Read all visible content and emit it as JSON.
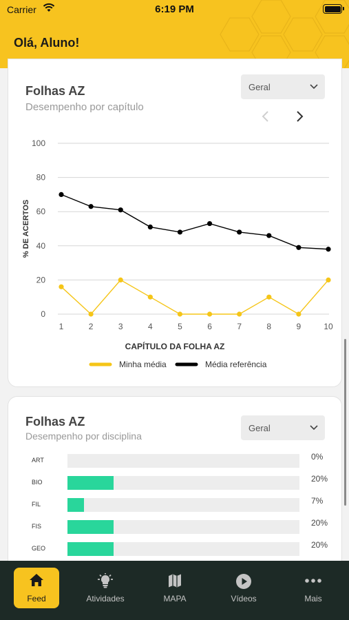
{
  "status_bar": {
    "carrier": "Carrier",
    "time": "6:19 PM"
  },
  "header": {
    "greeting": "Olá, Aluno!",
    "color": "#f7c31f"
  },
  "card_chapter": {
    "title": "Folhas AZ",
    "subtitle": "Desempenho por capítulo",
    "filter": "Geral",
    "prev_icon": "chevron-left-icon",
    "next_icon": "chevron-right-icon"
  },
  "chart_data": {
    "type": "line",
    "x": [
      1,
      2,
      3,
      4,
      5,
      6,
      7,
      8,
      9,
      10
    ],
    "xlabel": "CAPÍTULO DA FOLHA AZ",
    "ylabel": "% DE ACERTOS",
    "ylim": [
      0,
      100
    ],
    "yticks": [
      0,
      20,
      40,
      60,
      80,
      100
    ],
    "grid": true,
    "legend_position": "bottom",
    "series": [
      {
        "name": "Minha média",
        "color": "#f5c518",
        "values": [
          16,
          0,
          20,
          10,
          0,
          0,
          0,
          10,
          0,
          20
        ]
      },
      {
        "name": "Média referência",
        "color": "#000000",
        "values": [
          70,
          63,
          61,
          51,
          48,
          53,
          48,
          46,
          39,
          38
        ]
      }
    ]
  },
  "card_subject": {
    "title": "Folhas AZ",
    "subtitle": "Desempenho por disciplina",
    "filter": "Geral",
    "accent": "#29d69b",
    "rows": [
      {
        "label": "ART",
        "value": 0,
        "text": "0%"
      },
      {
        "label": "BIO",
        "value": 20,
        "text": "20%"
      },
      {
        "label": "FIL",
        "value": 7,
        "text": "7%"
      },
      {
        "label": "FIS",
        "value": 20,
        "text": "20%"
      },
      {
        "label": "GEO",
        "value": 20,
        "text": "20%"
      }
    ]
  },
  "tabbar": {
    "items": [
      {
        "label": "Feed",
        "icon": "home-icon"
      },
      {
        "label": "Atividades",
        "icon": "lightbulb-icon"
      },
      {
        "label": "MAPA",
        "icon": "map-icon"
      },
      {
        "label": "Vídeos",
        "icon": "play-icon"
      },
      {
        "label": "Mais",
        "icon": "more-icon"
      }
    ]
  }
}
